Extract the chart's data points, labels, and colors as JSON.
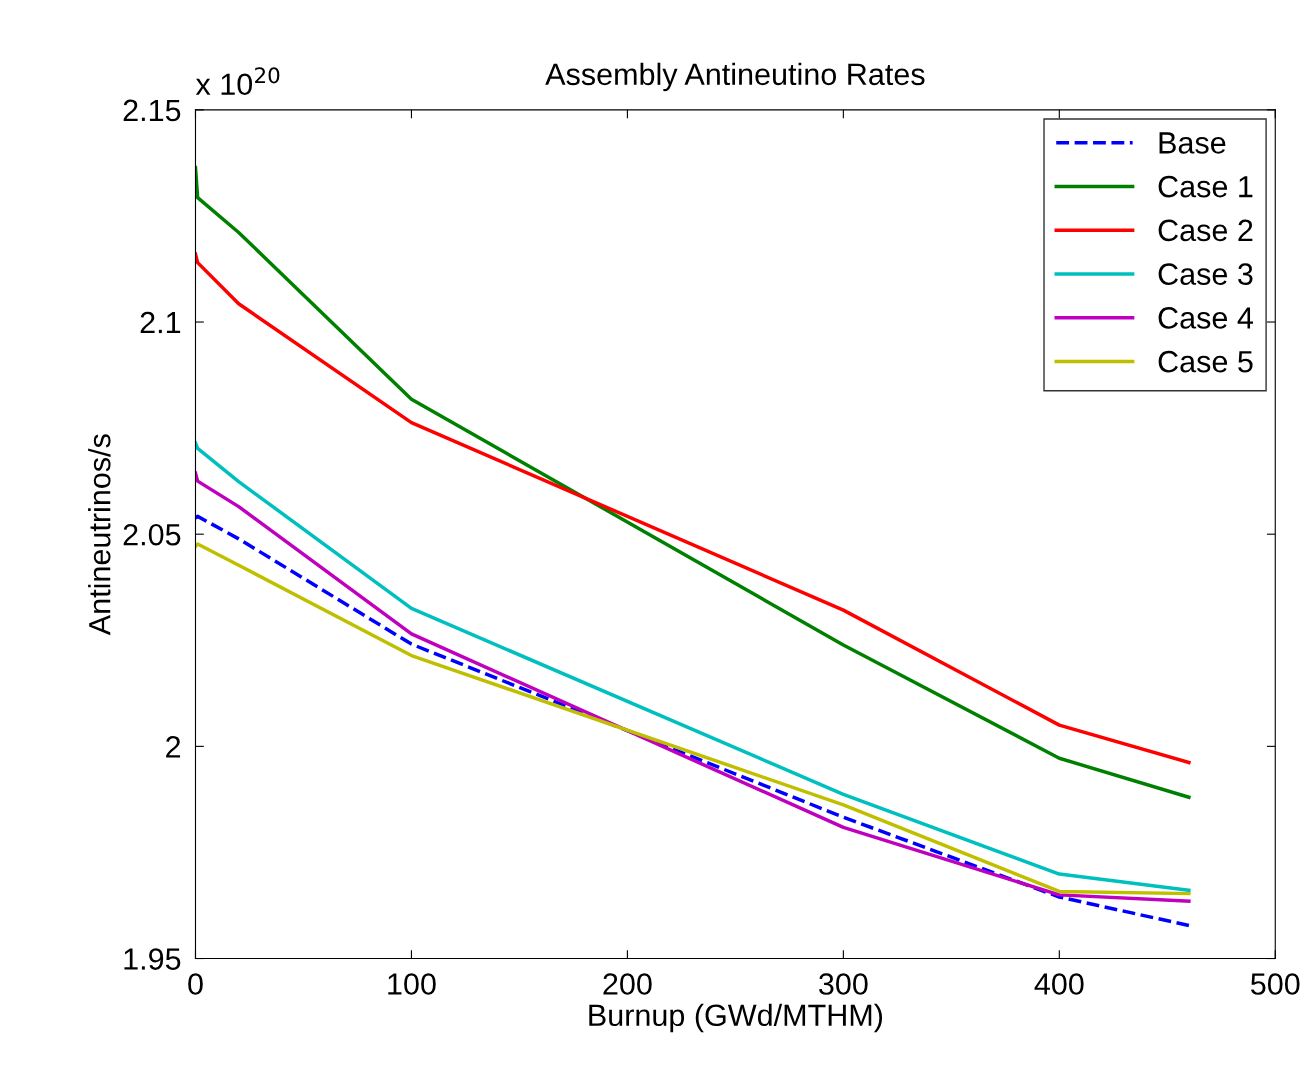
{
  "chart_data": {
    "type": "line",
    "title": "Assembly Antineutino Rates",
    "xlabel": "Burnup (GWd/MTHM)",
    "ylabel": "Antineutrinos/s",
    "annotations": [
      "x 10$^{20}$"
    ],
    "x": [
      0,
      1,
      20,
      100,
      300,
      400,
      460
    ],
    "series": [
      {
        "name": "Base",
        "color": "#0000ff",
        "line_style": "dashed",
        "values": [
          2.0538,
          2.0542,
          2.0489,
          2.0241,
          1.9833,
          1.9645,
          1.9578
        ]
      },
      {
        "name": "Case 1",
        "color": "#008000",
        "values": [
          2.1364,
          2.1293,
          2.1211,
          2.0818,
          2.0239,
          1.9972,
          1.988
        ]
      },
      {
        "name": "Case 2",
        "color": "#ff0000",
        "values": [
          2.116,
          2.114,
          2.1043,
          2.0763,
          2.0321,
          2.005,
          1.9962
        ]
      },
      {
        "name": "Case 3",
        "color": "#00bfbf",
        "values": [
          2.0715,
          2.0702,
          2.0624,
          2.0325,
          1.9887,
          1.9699,
          1.9661
        ]
      },
      {
        "name": "Case 4",
        "color": "#bf00bf",
        "values": [
          2.0644,
          2.0625,
          2.0565,
          2.0265,
          1.9809,
          1.965,
          1.9635
        ]
      },
      {
        "name": "Case 5",
        "color": "#bfbf00",
        "values": [
          2.0471,
          2.0477,
          2.0427,
          2.0214,
          1.9862,
          1.9658,
          1.9653
        ]
      }
    ],
    "xlim": [
      0,
      500
    ],
    "xticks": [
      0,
      100,
      200,
      300,
      400,
      500
    ],
    "ylim": [
      1.95,
      2.15
    ],
    "yticks": [
      1.95,
      2,
      2.05,
      2.1,
      2.15
    ],
    "line_style": "solid",
    "marker": "none",
    "grid": false,
    "legend": "top right"
  }
}
